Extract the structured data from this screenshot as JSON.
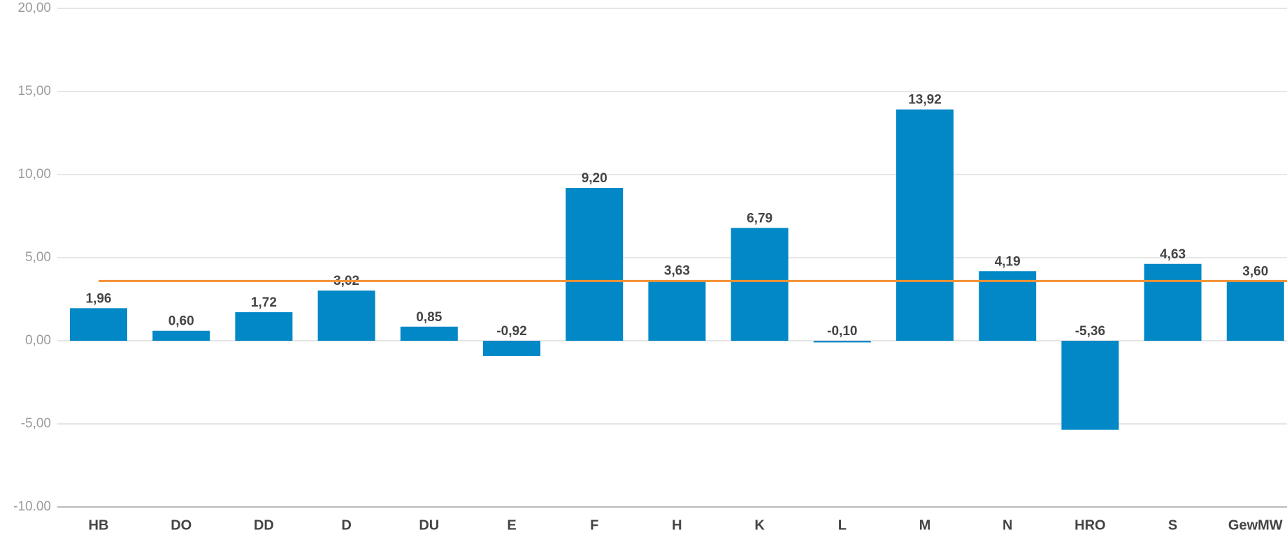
{
  "chart_data": {
    "type": "bar",
    "categories": [
      "HB",
      "DO",
      "DD",
      "D",
      "DU",
      "E",
      "F",
      "H",
      "K",
      "L",
      "M",
      "N",
      "HRO",
      "S",
      "GewMW"
    ],
    "values": [
      1.96,
      0.6,
      1.72,
      3.02,
      0.85,
      -0.92,
      9.2,
      3.63,
      6.79,
      -0.1,
      13.92,
      4.19,
      -5.36,
      4.63,
      3.6
    ],
    "value_labels": [
      "1,96",
      "0,60",
      "1,72",
      "3,02",
      "0,85",
      "-0,92",
      "9,20",
      "3,63",
      "6,79",
      "-0,10",
      "13,92",
      "4,19",
      "-5,36",
      "4,63",
      "3,60"
    ],
    "color": "#0288c6",
    "reference_line": {
      "value": 3.6,
      "color": "#f39133"
    },
    "ylim": [
      -10,
      20
    ],
    "yticks": [
      {
        "value": -10,
        "label": "-10.00"
      },
      {
        "value": -5,
        "label": "-5,00"
      },
      {
        "value": 0,
        "label": "0,00"
      },
      {
        "value": 5,
        "label": "5,00"
      },
      {
        "value": 10,
        "label": "10,00"
      },
      {
        "value": 15,
        "label": "15,00"
      },
      {
        "value": 20,
        "label": "20,00"
      }
    ],
    "grid": true
  }
}
